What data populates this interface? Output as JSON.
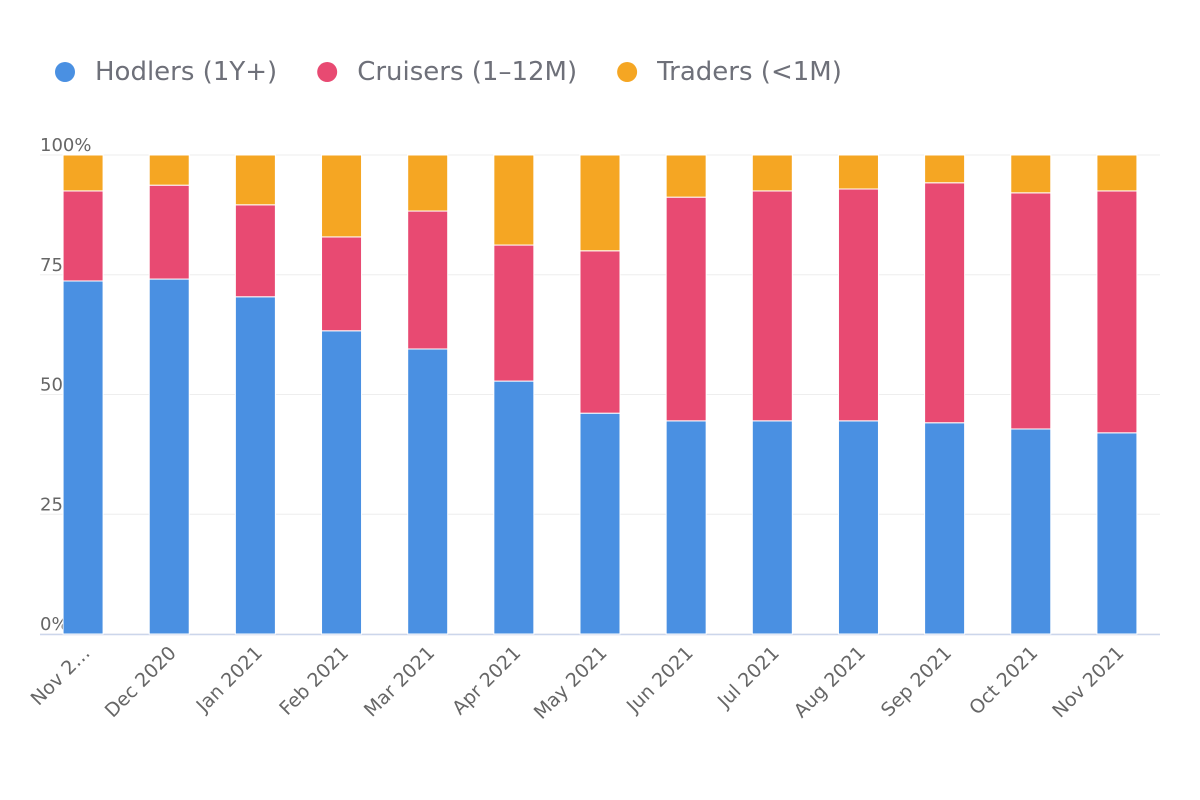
{
  "chart_data": {
    "type": "stacked_bar",
    "categories": [
      "Nov 2…",
      "Dec 2020",
      "Jan 2021",
      "Feb 2021",
      "Mar 2021",
      "Apr 2021",
      "May 2021",
      "Jun 2021",
      "Jul 2021",
      "Aug 2021",
      "Sep 2021",
      "Oct 2021",
      "Nov 2021"
    ],
    "series": [
      {
        "name": "Hodlers (1Y+)",
        "color": "#4a90e2",
        "values": [
          73.7,
          74.1,
          70.4,
          63.3,
          59.5,
          52.8,
          46.1,
          44.5,
          44.5,
          44.5,
          44.1,
          42.8,
          42.0
        ]
      },
      {
        "name": "Cruisers (1–12M)",
        "color": "#e84a72",
        "values": [
          18.8,
          19.6,
          19.2,
          19.6,
          28.8,
          28.4,
          33.9,
          46.7,
          48.0,
          48.4,
          50.1,
          49.3,
          50.5
        ]
      },
      {
        "name": "Traders (<1M)",
        "color": "#f5a623",
        "values": [
          7.5,
          6.3,
          10.4,
          17.1,
          11.7,
          18.8,
          20.0,
          8.8,
          7.5,
          7.1,
          5.8,
          7.9,
          7.5
        ]
      }
    ],
    "ylim": [
      0,
      100
    ],
    "yticks": [
      {
        "value": 0,
        "label": "0%"
      },
      {
        "value": 25,
        "label": "25%"
      },
      {
        "value": 50,
        "label": "50%"
      },
      {
        "value": 75,
        "label": "75%"
      },
      {
        "value": 100,
        "label": "100%"
      }
    ],
    "grid": true
  }
}
